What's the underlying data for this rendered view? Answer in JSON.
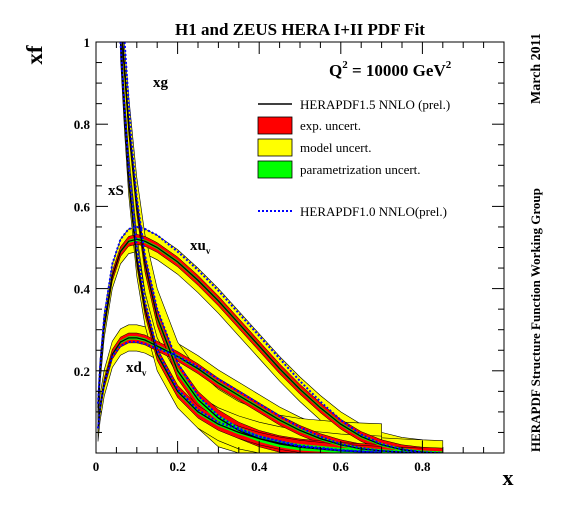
{
  "chart_data": {
    "type": "line",
    "title": "H1 and ZEUS HERA I+II PDF Fit",
    "scale_label": "Q",
    "scale_exp": "2",
    "scale_value": " = 10000 GeV",
    "scale_unit_exp": "2",
    "date_label": "March 2011",
    "group_label": "HERAPDF Structure Function Working Group",
    "xlabel": "x",
    "ylabel": "xf",
    "xlim": [
      0,
      1
    ],
    "ylim": [
      0,
      1
    ],
    "x_ticks": [
      "0",
      "0.2",
      "0.4",
      "0.6",
      "0.8"
    ],
    "y_ticks": [
      "0.2",
      "0.4",
      "0.6",
      "0.8",
      "1"
    ],
    "legend_position": "top-right",
    "legend": [
      {
        "label": "HERAPDF1.5 NNLO (prel.)",
        "kind": "line",
        "color": "#000000"
      },
      {
        "label": "exp. uncert.",
        "kind": "box",
        "color": "#ff0000"
      },
      {
        "label": "model uncert.",
        "kind": "box",
        "color": "#ffff00"
      },
      {
        "label": "parametrization uncert.",
        "kind": "box",
        "color": "#00ff00"
      },
      {
        "label": "HERAPDF1.0 NNLO(prel.)",
        "kind": "dotted",
        "color": "#0000ff"
      }
    ],
    "curve_labels": {
      "xg": "xg",
      "xS": "xS",
      "xu_main": "xu",
      "xu_sub": "v",
      "xd_main": "xd",
      "xd_sub": "v"
    },
    "series": [
      {
        "name": "xu",
        "curve": "xu",
        "x": [
          0.005,
          0.01,
          0.02,
          0.04,
          0.06,
          0.08,
          0.1,
          0.12,
          0.15,
          0.2,
          0.25,
          0.3,
          0.35,
          0.4,
          0.45,
          0.5,
          0.55,
          0.6,
          0.65,
          0.7,
          0.75,
          0.8,
          0.85
        ],
        "central": [
          0.11,
          0.2,
          0.31,
          0.43,
          0.49,
          0.515,
          0.52,
          0.515,
          0.5,
          0.465,
          0.42,
          0.37,
          0.315,
          0.26,
          0.205,
          0.155,
          0.11,
          0.07,
          0.04,
          0.02,
          0.008,
          0.002,
          0.0
        ],
        "exp": 0.012,
        "model": 0.018,
        "param": 0.004
      },
      {
        "name": "xd",
        "curve": "xd",
        "x": [
          0.005,
          0.01,
          0.02,
          0.04,
          0.06,
          0.08,
          0.1,
          0.12,
          0.15,
          0.2,
          0.25,
          0.3,
          0.35,
          0.4,
          0.45,
          0.5,
          0.55,
          0.6,
          0.65,
          0.7,
          0.75,
          0.8
        ],
        "central": [
          0.06,
          0.11,
          0.17,
          0.24,
          0.27,
          0.28,
          0.28,
          0.275,
          0.26,
          0.235,
          0.205,
          0.17,
          0.14,
          0.11,
          0.08,
          0.055,
          0.035,
          0.02,
          0.01,
          0.005,
          0.002,
          0.0
        ],
        "exp": 0.012,
        "model": 0.02,
        "param": 0.004
      },
      {
        "name": "xg",
        "curve": "xg",
        "x": [
          0.065,
          0.08,
          0.1,
          0.12,
          0.15,
          0.2,
          0.25,
          0.3,
          0.35,
          0.4,
          0.45,
          0.5,
          0.6,
          0.7
        ],
        "central": [
          1.0,
          0.8,
          0.6,
          0.46,
          0.33,
          0.2,
          0.13,
          0.085,
          0.055,
          0.035,
          0.022,
          0.014,
          0.005,
          0.001
        ],
        "exp": 0.02,
        "model": 0.05,
        "param": 0.008
      },
      {
        "name": "xS",
        "curve": "xS",
        "x": [
          0.06,
          0.07,
          0.08,
          0.1,
          0.12,
          0.15,
          0.2,
          0.25,
          0.3,
          0.35,
          0.4,
          0.45,
          0.5,
          0.6,
          0.7
        ],
        "central": [
          1.0,
          0.82,
          0.67,
          0.47,
          0.35,
          0.24,
          0.15,
          0.1,
          0.07,
          0.05,
          0.035,
          0.024,
          0.016,
          0.006,
          0.001
        ],
        "exp": 0.015,
        "model": 0.025,
        "param": 0.005
      }
    ],
    "reference_series": [
      {
        "curve": "xu",
        "x": [
          0.005,
          0.01,
          0.02,
          0.04,
          0.06,
          0.08,
          0.1,
          0.12,
          0.15,
          0.2,
          0.25,
          0.3,
          0.35,
          0.4,
          0.45,
          0.5,
          0.55,
          0.6,
          0.65,
          0.7,
          0.75,
          0.8,
          0.85
        ],
        "y": [
          0.12,
          0.21,
          0.33,
          0.46,
          0.52,
          0.545,
          0.55,
          0.545,
          0.53,
          0.49,
          0.445,
          0.395,
          0.34,
          0.285,
          0.23,
          0.175,
          0.125,
          0.08,
          0.045,
          0.022,
          0.009,
          0.002,
          0.0
        ]
      },
      {
        "curve": "xd",
        "x": [
          0.005,
          0.01,
          0.02,
          0.04,
          0.06,
          0.08,
          0.1,
          0.12,
          0.15,
          0.2,
          0.25,
          0.3,
          0.35,
          0.4,
          0.45,
          0.5,
          0.55,
          0.6,
          0.65,
          0.7,
          0.75,
          0.8
        ],
        "y": [
          0.06,
          0.11,
          0.17,
          0.235,
          0.26,
          0.27,
          0.27,
          0.265,
          0.255,
          0.235,
          0.21,
          0.18,
          0.15,
          0.12,
          0.09,
          0.062,
          0.04,
          0.022,
          0.012,
          0.005,
          0.002,
          0.0
        ]
      },
      {
        "curve": "xg",
        "x": [
          0.07,
          0.085,
          0.1,
          0.12,
          0.15,
          0.2,
          0.25,
          0.3,
          0.35,
          0.4,
          0.5,
          0.6,
          0.7
        ],
        "y": [
          1.0,
          0.78,
          0.62,
          0.48,
          0.35,
          0.22,
          0.14,
          0.09,
          0.06,
          0.04,
          0.016,
          0.006,
          0.001
        ]
      },
      {
        "curve": "xS",
        "x": [
          0.06,
          0.07,
          0.08,
          0.1,
          0.12,
          0.15,
          0.2,
          0.25,
          0.3,
          0.4,
          0.5,
          0.6,
          0.7
        ],
        "y": [
          1.0,
          0.84,
          0.7,
          0.5,
          0.37,
          0.25,
          0.155,
          0.105,
          0.075,
          0.04,
          0.018,
          0.007,
          0.001
        ]
      }
    ]
  }
}
